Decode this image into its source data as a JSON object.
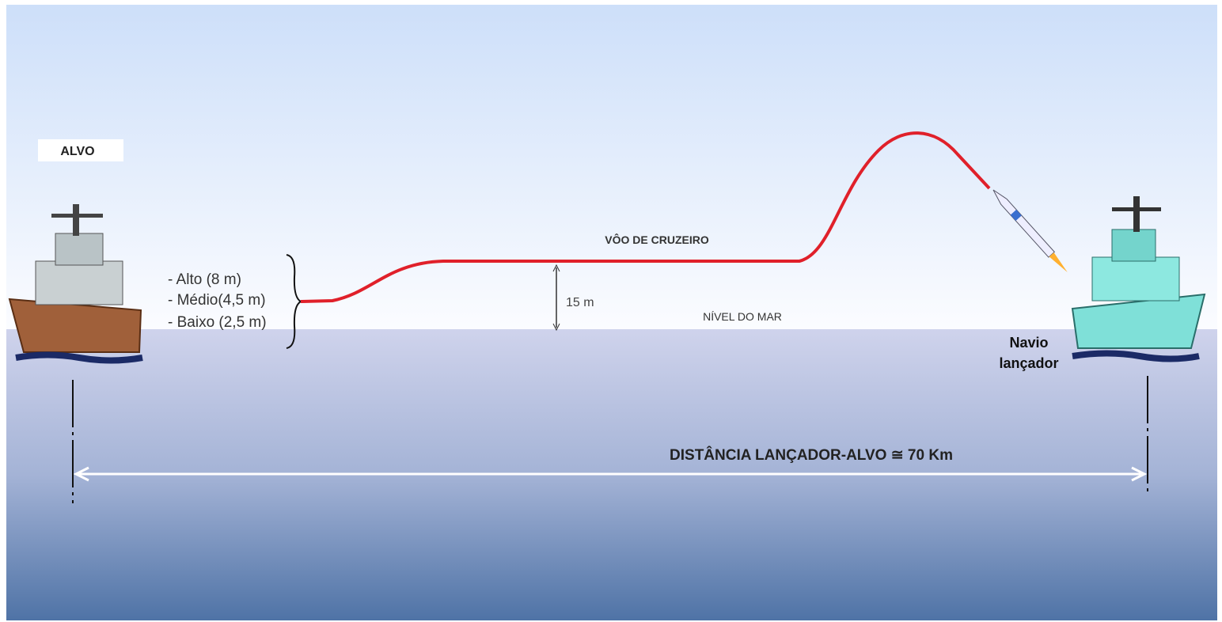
{
  "labels": {
    "target": "ALVO",
    "altitudes": [
      "- Alto (8 m)",
      "- Médio(4,5 m)",
      "- Baixo (2,5 m)"
    ],
    "altitude_marker": "15 m",
    "cruise": "VÔO DE CRUZEIRO",
    "sea_level": "NÍVEL DO MAR",
    "launcher": [
      "Navio",
      "lançador"
    ],
    "distance": "DISTÂNCIA LANÇADOR-ALVO ≅ 70 Km"
  }
}
